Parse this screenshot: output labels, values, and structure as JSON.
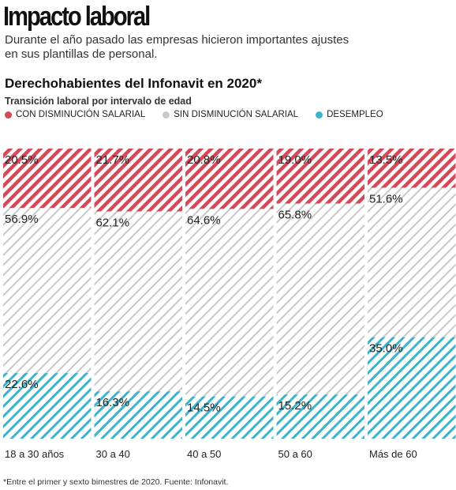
{
  "header": {
    "title": "Impacto laboral",
    "subtitle": "Durante el año pasado las empresas hicieron importantes ajustes en sus plantillas de personal."
  },
  "chart_section": {
    "title": "Derechohabientes del Infonavit en 2020*",
    "subtitle": "Transición laboral por intervalo de edad"
  },
  "footnote": "*Entre el primer y sexto bimestres de 2020. Fuente: Infonavit.",
  "colors": {
    "con_disminucion": "#d64857",
    "sin_disminucion": "#c8c8c8",
    "desempleo": "#3ab4cc"
  },
  "chart_data": {
    "type": "bar",
    "stacked": true,
    "title": "",
    "xlabel": "",
    "ylabel": "",
    "ylim": [
      0,
      100
    ],
    "grid": false,
    "legend_position": "top-left",
    "categories": [
      "18 a 30 años",
      "30 a 40",
      "40 a 50",
      "50 a 60",
      "Más de 60"
    ],
    "series": [
      {
        "name": "CON DISMINUCIÓN SALARIAL",
        "key": "con_disminucion",
        "values": [
          20.5,
          21.7,
          20.8,
          19.0,
          13.5
        ],
        "labels": [
          "20.5%",
          "21.7%",
          "20.8%",
          "19.0%",
          "13.5%"
        ]
      },
      {
        "name": "SIN DISMINUCIÓN SALARIAL",
        "key": "sin_disminucion",
        "values": [
          56.9,
          62.1,
          64.6,
          65.8,
          51.6
        ],
        "labels": [
          "56.9%",
          "62.1%",
          "64.6%",
          "65.8%",
          "51.6%"
        ]
      },
      {
        "name": "DESEMPLEO",
        "key": "desempleo",
        "values": [
          22.6,
          16.3,
          14.5,
          15.2,
          35.0
        ],
        "labels": [
          "22.6%",
          "16.3%",
          "14.5%",
          "15.2%",
          "35.0%"
        ]
      }
    ]
  }
}
